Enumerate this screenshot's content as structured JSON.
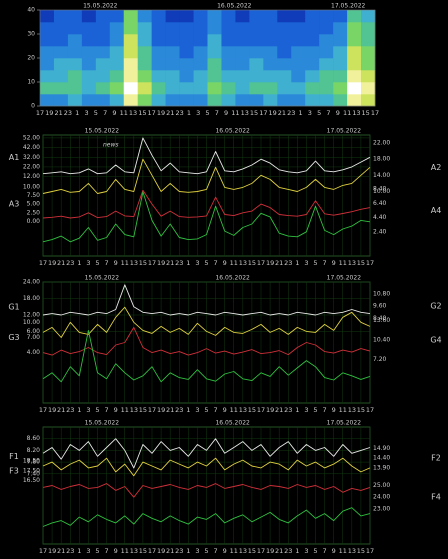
{
  "chart_data": [
    {
      "type": "heatmap",
      "dates": [
        "15.05.2022",
        "16.05.2022",
        "17.05.2022"
      ],
      "categories": [
        "17",
        "19",
        "21",
        "23",
        "1",
        "3",
        "5",
        "7",
        "9",
        "11",
        "13",
        "15",
        "17",
        "19",
        "21",
        "23",
        "1",
        "3",
        "5",
        "7",
        "9",
        "11",
        "13",
        "15",
        "17",
        "19",
        "21",
        "23",
        "1",
        "3",
        "5",
        "7",
        "9",
        "11",
        "13",
        "15",
        "17"
      ],
      "ylim": [
        0,
        40
      ],
      "yticks": [
        0,
        10,
        20,
        30,
        40
      ],
      "ybins": [
        0,
        5,
        10,
        15,
        20,
        25,
        30,
        35,
        40
      ],
      "vlim": [
        0,
        10
      ],
      "colors": [
        "#050a60",
        "#0c2fb0",
        "#1e6fe0",
        "#3fb0d0",
        "#5fd06a",
        "#e8e85a",
        "#ffffff"
      ],
      "values": [
        [
          4,
          4,
          5,
          4,
          4,
          5,
          9,
          7,
          5,
          4,
          4,
          4,
          6,
          5,
          4,
          4,
          5,
          4,
          4,
          5,
          5,
          6,
          9,
          8
        ],
        [
          6,
          6,
          6,
          5,
          6,
          7,
          10,
          8,
          6,
          5,
          5,
          5,
          7,
          6,
          5,
          6,
          6,
          5,
          5,
          6,
          6,
          7,
          10,
          9
        ],
        [
          5,
          5,
          6,
          5,
          5,
          6,
          9,
          7,
          5,
          5,
          4,
          5,
          6,
          5,
          5,
          5,
          5,
          5,
          4,
          5,
          6,
          6,
          9,
          8
        ],
        [
          4,
          5,
          5,
          4,
          5,
          5,
          9,
          6,
          4,
          4,
          4,
          4,
          6,
          4,
          4,
          5,
          4,
          4,
          4,
          4,
          5,
          5,
          8,
          7
        ],
        [
          4,
          4,
          4,
          4,
          4,
          5,
          8,
          6,
          4,
          4,
          3,
          4,
          5,
          4,
          4,
          4,
          4,
          3,
          4,
          4,
          4,
          5,
          8,
          7
        ],
        [
          3,
          3,
          4,
          3,
          3,
          4,
          8,
          5,
          3,
          3,
          3,
          3,
          5,
          3,
          3,
          3,
          3,
          3,
          3,
          3,
          4,
          4,
          7,
          6
        ],
        [
          3,
          3,
          3,
          3,
          3,
          4,
          7,
          5,
          3,
          3,
          3,
          3,
          4,
          3,
          3,
          3,
          3,
          3,
          3,
          3,
          3,
          4,
          7,
          6
        ],
        [
          2,
          3,
          3,
          2,
          3,
          3,
          7,
          4,
          3,
          2,
          2,
          3,
          4,
          3,
          2,
          3,
          3,
          2,
          2,
          3,
          3,
          3,
          6,
          5
        ]
      ]
    },
    {
      "type": "line",
      "annotation": "news",
      "dates": [
        "15.05.2022",
        "16.05.2022",
        "17.05.2022"
      ],
      "categories": [
        "17",
        "19",
        "21",
        "23",
        "1",
        "3",
        "5",
        "7",
        "9",
        "11",
        "13",
        "15",
        "17",
        "19",
        "21",
        "23",
        "1",
        "3",
        "5",
        "7",
        "9",
        "11",
        "13",
        "15",
        "17",
        "19",
        "21",
        "23",
        "1",
        "3",
        "5",
        "7",
        "9",
        "11",
        "13",
        "15",
        "17"
      ],
      "series": [
        {
          "name": "A1",
          "color": "#e8e8e8",
          "side": "left",
          "ylim": [
            -70,
            55
          ],
          "yticks": [
            {
              "value": 52,
              "label": "52.00"
            },
            {
              "value": 42,
              "label": "42.00"
            },
            {
              "value": 32,
              "label": "32.00"
            },
            {
              "value": 22,
              "label": "22.00"
            },
            {
              "value": 12,
              "label": "12.00"
            }
          ],
          "values": [
            15,
            16,
            17,
            15,
            16,
            20,
            15,
            16,
            24,
            17,
            16,
            52,
            34,
            18,
            26,
            17,
            16,
            15,
            17,
            38,
            18,
            17,
            20,
            24,
            30,
            26,
            19,
            17,
            16,
            18,
            28,
            18,
            17,
            19,
            22,
            27,
            32
          ]
        },
        {
          "name": "A2",
          "color": "#e0d040",
          "side": "right",
          "ylim": [
            -6,
            24
          ],
          "yticks": [
            {
              "value": 22,
              "label": "22.00"
            },
            {
              "value": 18,
              "label": "18.00"
            },
            {
              "value": 14,
              "label": "14.00"
            },
            {
              "value": 10,
              "label": "10.00"
            }
          ],
          "values": [
            9.5,
            10,
            10.5,
            9.8,
            10,
            12,
            9.5,
            10,
            13,
            10.5,
            10,
            18,
            14,
            10,
            12,
            10,
            9.8,
            10,
            10.5,
            16,
            11,
            10.5,
            11,
            12,
            14,
            13,
            11,
            10.5,
            10,
            11,
            13,
            11,
            10.5,
            11.5,
            12,
            14,
            16
          ]
        },
        {
          "name": "A3",
          "color": "#d0303a",
          "side": "left",
          "ylim": [
            -10,
            25
          ],
          "yticks": [
            {
              "value": 10,
              "label": "10.00"
            },
            {
              "value": 7.5,
              "label": "7.50"
            },
            {
              "value": 5,
              "label": "5.00"
            },
            {
              "value": 2.5,
              "label": "2.50"
            },
            {
              "value": 0,
              "label": "0.00"
            }
          ],
          "values": [
            1,
            1.2,
            1.5,
            1,
            1.3,
            2.5,
            1.1,
            1.4,
            3,
            1.6,
            1.4,
            9,
            5,
            1.5,
            3,
            1.4,
            1.2,
            1.3,
            1.6,
            7,
            2,
            1.7,
            2.5,
            3,
            5,
            4,
            2,
            1.7,
            1.5,
            2,
            6,
            2.2,
            1.8,
            2.3,
            2.8,
            3.5,
            4
          ]
        },
        {
          "name": "A4",
          "color": "#30c040",
          "side": "right",
          "ylim": [
            -1,
            16
          ],
          "yticks": [
            {
              "value": 8.4,
              "label": "8.40"
            },
            {
              "value": 6.4,
              "label": "6.40"
            },
            {
              "value": 4.4,
              "label": "4.40"
            },
            {
              "value": 2.4,
              "label": "2.40"
            }
          ],
          "values": [
            1,
            1.3,
            1.8,
            1,
            1.5,
            3,
            1.2,
            1.6,
            3.5,
            2,
            1.7,
            8,
            4,
            1.8,
            3.5,
            1.6,
            1.3,
            1.4,
            2,
            6,
            2.5,
            1.9,
            3,
            3.5,
            5,
            4.5,
            2.2,
            1.8,
            1.7,
            2.4,
            6,
            2.6,
            2,
            2.8,
            3.2,
            4,
            3.8
          ]
        }
      ]
    },
    {
      "type": "line",
      "dates": [
        "15.05.2022",
        "16.05.2022",
        "17.05.2022"
      ],
      "categories": [
        "17",
        "19",
        "21",
        "23",
        "1",
        "3",
        "5",
        "7",
        "9",
        "11",
        "13",
        "15",
        "17",
        "19",
        "21",
        "23",
        "1",
        "3",
        "5",
        "7",
        "9",
        "11",
        "13",
        "15",
        "17",
        "19",
        "21",
        "23",
        "1",
        "3",
        "5",
        "7",
        "9",
        "11",
        "13",
        "15",
        "17"
      ],
      "series": [
        {
          "name": "G1",
          "color": "#e8e8e8",
          "side": "left",
          "ylim": [
            -20,
            24
          ],
          "yticks": [
            {
              "value": 24,
              "label": "24.00"
            },
            {
              "value": 18,
              "label": "18.00"
            },
            {
              "value": 12,
              "label": "12.00"
            },
            {
              "value": 6,
              "label": "6.00"
            }
          ],
          "values": [
            12,
            12.5,
            12,
            13,
            12.5,
            12,
            13,
            12.5,
            14,
            23,
            15,
            13,
            12.5,
            13,
            12,
            12.5,
            12,
            13,
            12.5,
            12,
            13,
            12.5,
            12,
            12.5,
            13,
            12,
            12.5,
            12,
            13,
            12.5,
            12,
            13,
            12.5,
            13,
            14,
            13,
            12.5
          ]
        },
        {
          "name": "G2",
          "color": "#e0d040",
          "side": "right",
          "ylim": [
            0,
            12
          ],
          "yticks": [
            {
              "value": 10.8,
              "label": "10.80"
            },
            {
              "value": 9.6,
              "label": "9.60"
            },
            {
              "value": 8.4,
              "label": "8.40"
            }
          ],
          "values": [
            7,
            7.5,
            6.5,
            8,
            7,
            6.8,
            7.8,
            7,
            8.5,
            9.5,
            8,
            7.2,
            6.9,
            7.6,
            7,
            7.4,
            6.8,
            7.9,
            7.1,
            6.7,
            7.5,
            7,
            6.9,
            7.3,
            7.8,
            7,
            7.4,
            6.8,
            7.5,
            7.1,
            7,
            7.8,
            7.2,
            8.5,
            9,
            8,
            7.6
          ]
        },
        {
          "name": "G3",
          "color": "#d0303a",
          "side": "left",
          "ylim": [
            -6,
            18
          ],
          "yticks": [
            {
              "value": 10,
              "label": "10.00"
            },
            {
              "value": 7,
              "label": "7.00"
            },
            {
              "value": 4,
              "label": "4.00"
            }
          ],
          "values": [
            4,
            3.5,
            4.5,
            3.8,
            4.2,
            5,
            4,
            3.6,
            5.5,
            6,
            9,
            5,
            4,
            4.5,
            3.8,
            4.2,
            3.5,
            4,
            4.8,
            3.9,
            4.3,
            3.7,
            4.1,
            4.6,
            3.8,
            4,
            4.4,
            3.6,
            5,
            6,
            5.5,
            4.2,
            3.9,
            4.5,
            4.1,
            4.8,
            4.3
          ]
        },
        {
          "name": "G4",
          "color": "#30c040",
          "side": "right",
          "ylim": [
            0,
            20
          ],
          "yticks": [
            {
              "value": 13.6,
              "label": "13.60"
            },
            {
              "value": 10.4,
              "label": "10.40"
            },
            {
              "value": 7.2,
              "label": "7.20"
            }
          ],
          "values": [
            4,
            5,
            3.5,
            6,
            4.5,
            12,
            5,
            4,
            6.5,
            5,
            3.8,
            4.5,
            6,
            3.5,
            5,
            4.2,
            3.9,
            5.5,
            4,
            3.6,
            4.8,
            5.2,
            4,
            3.7,
            5,
            4.4,
            6,
            4.6,
            5.8,
            7,
            6,
            4.2,
            3.8,
            5,
            4.5,
            3.9,
            4.4
          ]
        }
      ]
    },
    {
      "type": "line",
      "dates": [
        "15.05.2022",
        "16.05.2022",
        "17.05.2022"
      ],
      "categories": [
        "17",
        "19",
        "21",
        "23",
        "1",
        "3",
        "5",
        "7",
        "9",
        "11",
        "13",
        "15",
        "17",
        "19",
        "21",
        "23",
        "1",
        "3",
        "5",
        "7",
        "9",
        "11",
        "13",
        "15",
        "17",
        "19",
        "21",
        "23",
        "1",
        "3",
        "5",
        "7",
        "9",
        "11",
        "13",
        "15",
        "17"
      ],
      "series": [
        {
          "name": "F1",
          "color": "#e8e8e8",
          "side": "left",
          "ylim": [
            5,
            9
          ],
          "yticks": [
            {
              "value": 8.6,
              "label": "8.60"
            },
            {
              "value": 8.2,
              "label": "8.20"
            },
            {
              "value": 7.8,
              "label": "7.80"
            },
            {
              "value": 7.4,
              "label": "7.40"
            }
          ],
          "values": [
            8.1,
            8.3,
            7.9,
            8.4,
            8.2,
            8.5,
            8,
            8.3,
            8.6,
            8.2,
            7.6,
            8.4,
            8.1,
            8.5,
            8.2,
            8.3,
            8,
            8.4,
            8.2,
            8.6,
            8.1,
            8.3,
            8.5,
            8.2,
            8.4,
            8,
            8.3,
            8.5,
            8.1,
            8.4,
            8.2,
            8.3,
            8,
            8.4,
            8.1,
            8.2,
            8.3
          ]
        },
        {
          "name": "F2",
          "color": "#e0d040",
          "side": "right",
          "ylim": [
            10,
            16
          ],
          "yticks": [
            {
              "value": 14.9,
              "label": "14.90"
            },
            {
              "value": 14.4,
              "label": "14.40"
            },
            {
              "value": 13.9,
              "label": "13.90"
            }
          ],
          "values": [
            14,
            14.2,
            13.8,
            14.1,
            14.3,
            13.9,
            14,
            14.4,
            13.7,
            14.1,
            13.5,
            14.2,
            14,
            13.8,
            14.3,
            14.1,
            13.9,
            14.2,
            14,
            14.4,
            13.8,
            14.1,
            14.3,
            14,
            13.9,
            14.2,
            14.1,
            13.8,
            14.3,
            14,
            14.2,
            13.9,
            14.1,
            14.4,
            14,
            13.7,
            13.9
          ]
        },
        {
          "name": "F3",
          "color": "#d0303a",
          "side": "left",
          "ylim": [
            10,
            22
          ],
          "yticks": [
            {
              "value": 18.5,
              "label": "18.50"
            },
            {
              "value": 17.5,
              "label": "17.50"
            },
            {
              "value": 16.5,
              "label": "16.50"
            }
          ],
          "values": [
            15.8,
            16,
            15.6,
            15.9,
            16.1,
            15.7,
            15.8,
            16.2,
            15.5,
            15.9,
            14.8,
            16,
            15.7,
            15.9,
            16.1,
            15.8,
            15.6,
            16,
            15.8,
            16.2,
            15.7,
            15.9,
            16.1,
            15.8,
            15.6,
            16,
            15.9,
            15.7,
            16.1,
            15.8,
            16,
            15.6,
            15.9,
            15.3,
            15.7,
            15.5,
            15.8
          ]
        },
        {
          "name": "F4",
          "color": "#30c040",
          "side": "right",
          "ylim": [
            20,
            30
          ],
          "yticks": [
            {
              "value": 25,
              "label": "25.00"
            },
            {
              "value": 24,
              "label": "24.00"
            },
            {
              "value": 23,
              "label": "23.00"
            }
          ],
          "values": [
            21.5,
            21.8,
            22,
            21.6,
            22.3,
            21.9,
            22.5,
            22.1,
            21.8,
            22.4,
            21.7,
            22.6,
            22.2,
            21.9,
            22.4,
            22,
            21.7,
            22.3,
            22.1,
            22.6,
            21.8,
            22.2,
            22.5,
            21.9,
            22.3,
            22.7,
            22.1,
            21.8,
            22.4,
            22.9,
            22.2,
            22.6,
            22,
            22.8,
            23.1,
            22.4,
            22.6
          ]
        }
      ]
    }
  ]
}
